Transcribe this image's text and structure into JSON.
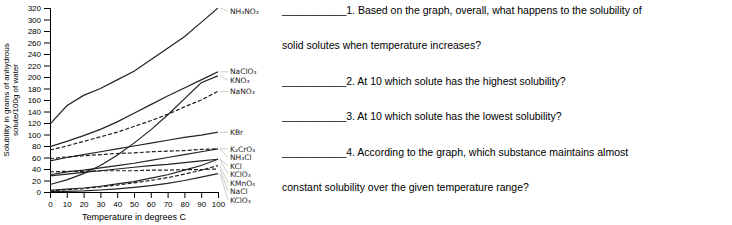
{
  "chart_data": {
    "type": "line",
    "xlabel": "Temperature in degrees C",
    "ylabel": "Solubility in grams of anhydrous\nsolute/100g of water",
    "xlim": [
      0,
      100
    ],
    "ylim": [
      0,
      320
    ],
    "xticks": [
      0,
      10,
      20,
      30,
      40,
      50,
      60,
      70,
      80,
      90,
      100
    ],
    "yticks": [
      0,
      20,
      40,
      60,
      80,
      100,
      120,
      140,
      160,
      180,
      200,
      220,
      240,
      260,
      280,
      300,
      320
    ],
    "grid": false,
    "x": [
      0,
      10,
      20,
      30,
      40,
      50,
      60,
      70,
      80,
      90,
      100
    ],
    "series": [
      {
        "name": "NH₄NO₃",
        "color": "#222222",
        "line_style": "solid",
        "values": [
          118,
          150,
          168,
          180,
          195,
          210,
          230,
          250,
          270,
          295,
          320
        ]
      },
      {
        "name": "NaClO₃",
        "color": "#222222",
        "line_style": "solid",
        "values": [
          79,
          88,
          98,
          109,
          122,
          137,
          152,
          167,
          181,
          195,
          209
        ]
      },
      {
        "name": "NaNO₃",
        "color": "#222222",
        "line_style": "dashed",
        "values": [
          73,
          80,
          88,
          96,
          104,
          114,
          124,
          135,
          148,
          160,
          175
        ]
      },
      {
        "name": "KNO₃",
        "color": "#222222",
        "line_style": "solid",
        "values": [
          13,
          21,
          32,
          46,
          64,
          85,
          108,
          134,
          162,
          190,
          202
        ]
      },
      {
        "name": "KBr",
        "color": "#222222",
        "line_style": "solid",
        "values": [
          54,
          60,
          65,
          70,
          75,
          80,
          85,
          90,
          95,
          99,
          104
        ]
      },
      {
        "name": "K₂CrO₄",
        "color": "#222222",
        "line_style": "dashed",
        "values": [
          58,
          61,
          63,
          65,
          67,
          68,
          70,
          71,
          72,
          74,
          75
        ]
      },
      {
        "name": "NH₄Cl",
        "color": "#222222",
        "line_style": "solid",
        "values": [
          30,
          35,
          38,
          42,
          46,
          50,
          55,
          60,
          65,
          70,
          75
        ]
      },
      {
        "name": "KCl",
        "color": "#222222",
        "line_style": "solid",
        "values": [
          28,
          31,
          34,
          37,
          40,
          43,
          46,
          48,
          51,
          54,
          57
        ]
      },
      {
        "name": "NaCl",
        "color": "#222222",
        "line_style": "dashed",
        "values": [
          35,
          36,
          36,
          37,
          37,
          37,
          38,
          38,
          39,
          39,
          40
        ]
      },
      {
        "name": "KClO₃",
        "color": "#222222",
        "line_style": "solid",
        "values": [
          3,
          5,
          7,
          10,
          14,
          18,
          24,
          30,
          38,
          46,
          57
        ]
      },
      {
        "name": "KMnO₄",
        "color": "#222222",
        "line_style": "dashed",
        "values": [
          2,
          4,
          6,
          9,
          12,
          16,
          20,
          25,
          31,
          38,
          46
        ]
      },
      {
        "name": "KClO₄",
        "color": "#222222",
        "line_style": "solid",
        "values": [
          0.5,
          1.2,
          2.0,
          3.5,
          5.5,
          8,
          11,
          15,
          20,
          26,
          32
        ]
      }
    ],
    "annotations": [
      "___________1.  Based on the graph, overall, what happens to the solubility of",
      "solid solutes when temperature increases?",
      "___________2.  At 10 which solute has the highest solubility?",
      "___________3.  At 10 which solute has the lowest solubility?",
      "___________4.  According to the graph, which substance maintains almost",
      "constant solubility over the given temperature range?"
    ]
  }
}
